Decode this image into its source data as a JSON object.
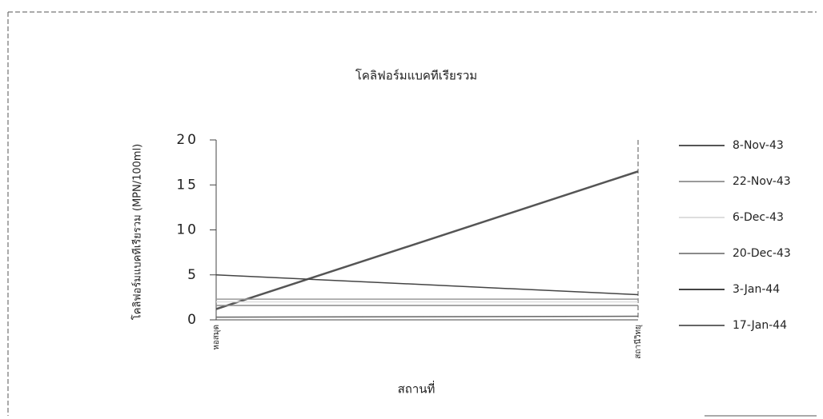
{
  "chart_data": {
    "type": "line",
    "title": "โคลิฟอร์มแบคทีเรียรวม",
    "y_label": "โคลิฟอร์มแบคทีเรียรวม (MPN/100ml)",
    "x_label": "สถานที่",
    "categories": [
      "หอสมุด",
      "สถานีวิทยุ"
    ],
    "ylim": [
      0,
      20
    ],
    "yticks": [
      0,
      5,
      10,
      15,
      20
    ],
    "series": [
      {
        "name": "8-Nov-43",
        "color": "#555555",
        "values": [
          1.2,
          16.5
        ]
      },
      {
        "name": "22-Nov-43",
        "color": "#9a9a9a",
        "values": [
          2.3,
          2.3
        ]
      },
      {
        "name": "6-Dec-43",
        "color": "#dddddd",
        "values": [
          2.0,
          2.0
        ]
      },
      {
        "name": "20-Dec-43",
        "color": "#8a8a8a",
        "values": [
          1.6,
          1.6
        ]
      },
      {
        "name": "3-Jan-44",
        "color": "#444444",
        "values": [
          5,
          2.8
        ]
      },
      {
        "name": "17-Jan-44",
        "color": "#666666",
        "values": [
          0.3,
          0.4
        ]
      }
    ]
  }
}
